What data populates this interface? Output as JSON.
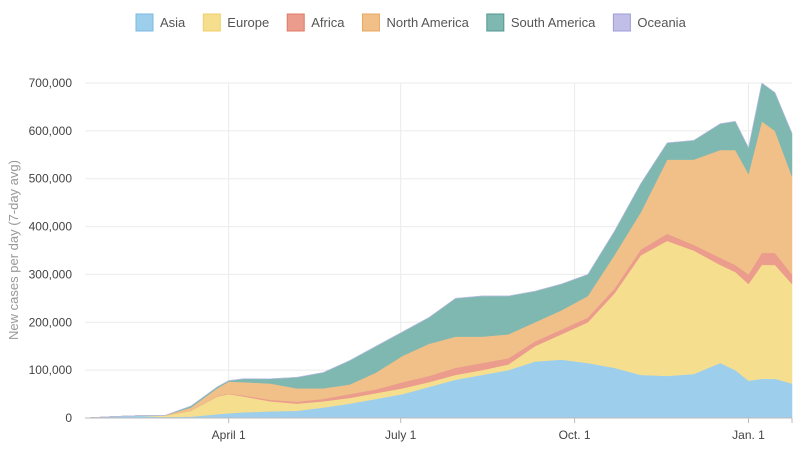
{
  "chart_data": {
    "type": "area",
    "stacked": true,
    "title": "",
    "xlabel": "",
    "ylabel": "New cases per day (7-day avg)",
    "ylim": [
      0,
      700000
    ],
    "yticks": [
      0,
      100000,
      200000,
      300000,
      400000,
      500000,
      600000,
      700000
    ],
    "ytick_labels": [
      "0",
      "100,000",
      "200,000",
      "300,000",
      "400,000",
      "500,000",
      "600,000",
      "700,000"
    ],
    "xlim_day_of_2020": [
      15,
      389
    ],
    "xticks_day_of_2020": [
      91,
      182,
      274,
      366
    ],
    "xtick_labels": [
      "April 1",
      "July 1",
      "Oct. 1",
      "Jan. 1"
    ],
    "grid": true,
    "legend_position": "top",
    "x_day_of_2020": [
      15,
      29,
      43,
      57,
      71,
      85,
      91,
      99,
      113,
      127,
      141,
      155,
      169,
      183,
      197,
      211,
      225,
      239,
      253,
      267,
      281,
      295,
      309,
      323,
      337,
      351,
      359,
      366,
      373,
      380,
      389
    ],
    "series": [
      {
        "name": "Asia",
        "color": "#9dcfec",
        "stroke": "#7db9e0",
        "values": [
          0,
          3000,
          5000,
          2000,
          3000,
          8000,
          10000,
          12000,
          14000,
          15000,
          22000,
          30000,
          40000,
          50000,
          65000,
          80000,
          90000,
          100000,
          118000,
          122000,
          115000,
          105000,
          90000,
          88000,
          92000,
          115000,
          100000,
          78000,
          82000,
          82000,
          72000
        ]
      },
      {
        "name": "Europe",
        "color": "#f6de8f",
        "stroke": "#f0cf6a",
        "values": [
          0,
          0,
          0,
          3000,
          12000,
          37000,
          40000,
          33000,
          21000,
          15000,
          13000,
          12000,
          12000,
          12000,
          10000,
          10000,
          10000,
          12000,
          32000,
          53000,
          85000,
          155000,
          250000,
          282000,
          258000,
          205000,
          205000,
          202000,
          238000,
          238000,
          208000
        ]
      },
      {
        "name": "Africa",
        "color": "#eb9c8c",
        "stroke": "#e07a68",
        "values": [
          0,
          0,
          0,
          0,
          0,
          1000,
          1000,
          2000,
          3000,
          4000,
          5000,
          8000,
          8000,
          13000,
          13000,
          15000,
          15000,
          13000,
          10000,
          10000,
          10000,
          10000,
          12000,
          15000,
          12000,
          15000,
          15000,
          20000,
          25000,
          25000,
          20000
        ]
      },
      {
        "name": "North America",
        "color": "#f0c088",
        "stroke": "#e8a860",
        "values": [
          0,
          0,
          0,
          0,
          7000,
          16000,
          25000,
          28000,
          34000,
          28000,
          22000,
          20000,
          35000,
          55000,
          67000,
          65000,
          55000,
          50000,
          40000,
          40000,
          45000,
          70000,
          78000,
          155000,
          178000,
          225000,
          240000,
          210000,
          275000,
          255000,
          205000
        ]
      },
      {
        "name": "South America",
        "color": "#7fb8b1",
        "stroke": "#4f9990",
        "values": [
          0,
          0,
          0,
          0,
          3000,
          3000,
          2000,
          7000,
          10000,
          23000,
          33000,
          50000,
          55000,
          50000,
          55000,
          80000,
          85000,
          80000,
          65000,
          55000,
          45000,
          50000,
          60000,
          35000,
          40000,
          55000,
          60000,
          55000,
          80000,
          80000,
          90000
        ]
      },
      {
        "name": "Oceania",
        "color": "#c1bfe8",
        "stroke": "#9e9bd8",
        "values": [
          0,
          0,
          0,
          0,
          0,
          500,
          500,
          300,
          100,
          50,
          100,
          300,
          500,
          600,
          500,
          300,
          200,
          100,
          50,
          50,
          50,
          50,
          50,
          50,
          50,
          50,
          50,
          50,
          50,
          50,
          50
        ]
      }
    ]
  }
}
